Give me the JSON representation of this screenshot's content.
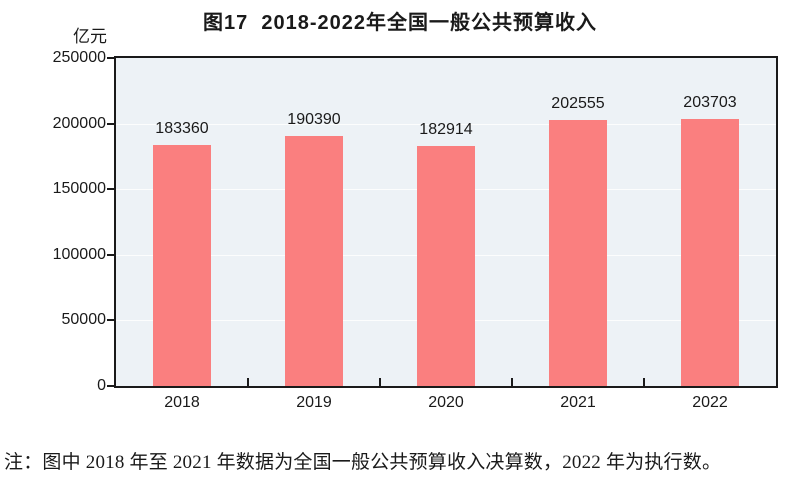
{
  "chart_data": {
    "type": "bar",
    "title": "图17  2018-2022年全国一般公共预算收入",
    "categories": [
      "2018",
      "2019",
      "2020",
      "2021",
      "2022"
    ],
    "values": [
      183360,
      190390,
      182914,
      202555,
      203703
    ],
    "xlabel": "",
    "ylabel": "亿元",
    "ylim": [
      0,
      250000
    ],
    "yticks": [
      0,
      50000,
      100000,
      150000,
      200000,
      250000
    ],
    "grid": true,
    "legend": false,
    "bar_value_labels": [
      "183360",
      "190390",
      "182914",
      "202555",
      "203703"
    ]
  },
  "note": "注：图中 2018 年至 2021 年数据为全国一般公共预算收入决算数，2022 年为执行数。",
  "colors": {
    "bar": "#FA7F7F",
    "plot_bg": "#EDF2F6",
    "axis": "#1A1A1A",
    "gridline": "#FFFFFF",
    "text": "#1A1A1A"
  }
}
